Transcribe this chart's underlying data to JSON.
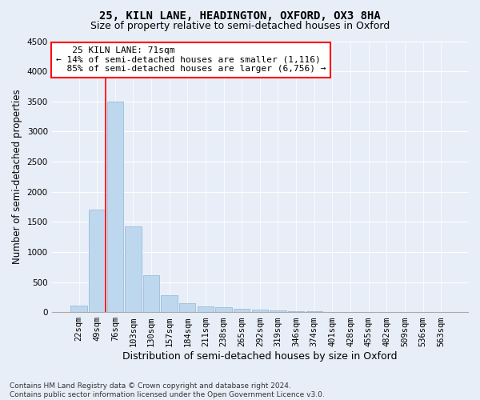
{
  "title_line1": "25, KILN LANE, HEADINGTON, OXFORD, OX3 8HA",
  "title_line2": "Size of property relative to semi-detached houses in Oxford",
  "xlabel": "Distribution of semi-detached houses by size in Oxford",
  "ylabel": "Number of semi-detached properties",
  "footer_line1": "Contains HM Land Registry data © Crown copyright and database right 2024.",
  "footer_line2": "Contains public sector information licensed under the Open Government Licence v3.0.",
  "bar_labels": [
    "22sqm",
    "49sqm",
    "76sqm",
    "103sqm",
    "130sqm",
    "157sqm",
    "184sqm",
    "211sqm",
    "238sqm",
    "265sqm",
    "292sqm",
    "319sqm",
    "346sqm",
    "374sqm",
    "401sqm",
    "428sqm",
    "455sqm",
    "482sqm",
    "509sqm",
    "536sqm",
    "563sqm"
  ],
  "bar_values": [
    110,
    1700,
    3500,
    1430,
    610,
    280,
    150,
    95,
    80,
    55,
    45,
    30,
    18,
    10,
    8,
    5,
    3,
    2,
    1,
    1,
    1
  ],
  "bar_color": "#bdd7ee",
  "bar_edgecolor": "#9dbbd8",
  "ylim": [
    0,
    4500
  ],
  "yticks": [
    0,
    500,
    1000,
    1500,
    2000,
    2500,
    3000,
    3500,
    4000,
    4500
  ],
  "property_label": "25 KILN LANE: 71sqm",
  "pct_smaller": 14,
  "pct_larger": 85,
  "n_smaller": "1,116",
  "n_larger": "6,756",
  "annotation_box_color": "white",
  "annotation_box_edgecolor": "red",
  "vline_color": "red",
  "vline_x_index": 1.5,
  "background_color": "#e8eef8",
  "grid_color": "#ffffff",
  "title_fontsize": 10,
  "subtitle_fontsize": 9,
  "axis_label_fontsize": 8.5,
  "tick_fontsize": 7.5,
  "annotation_fontsize": 8
}
